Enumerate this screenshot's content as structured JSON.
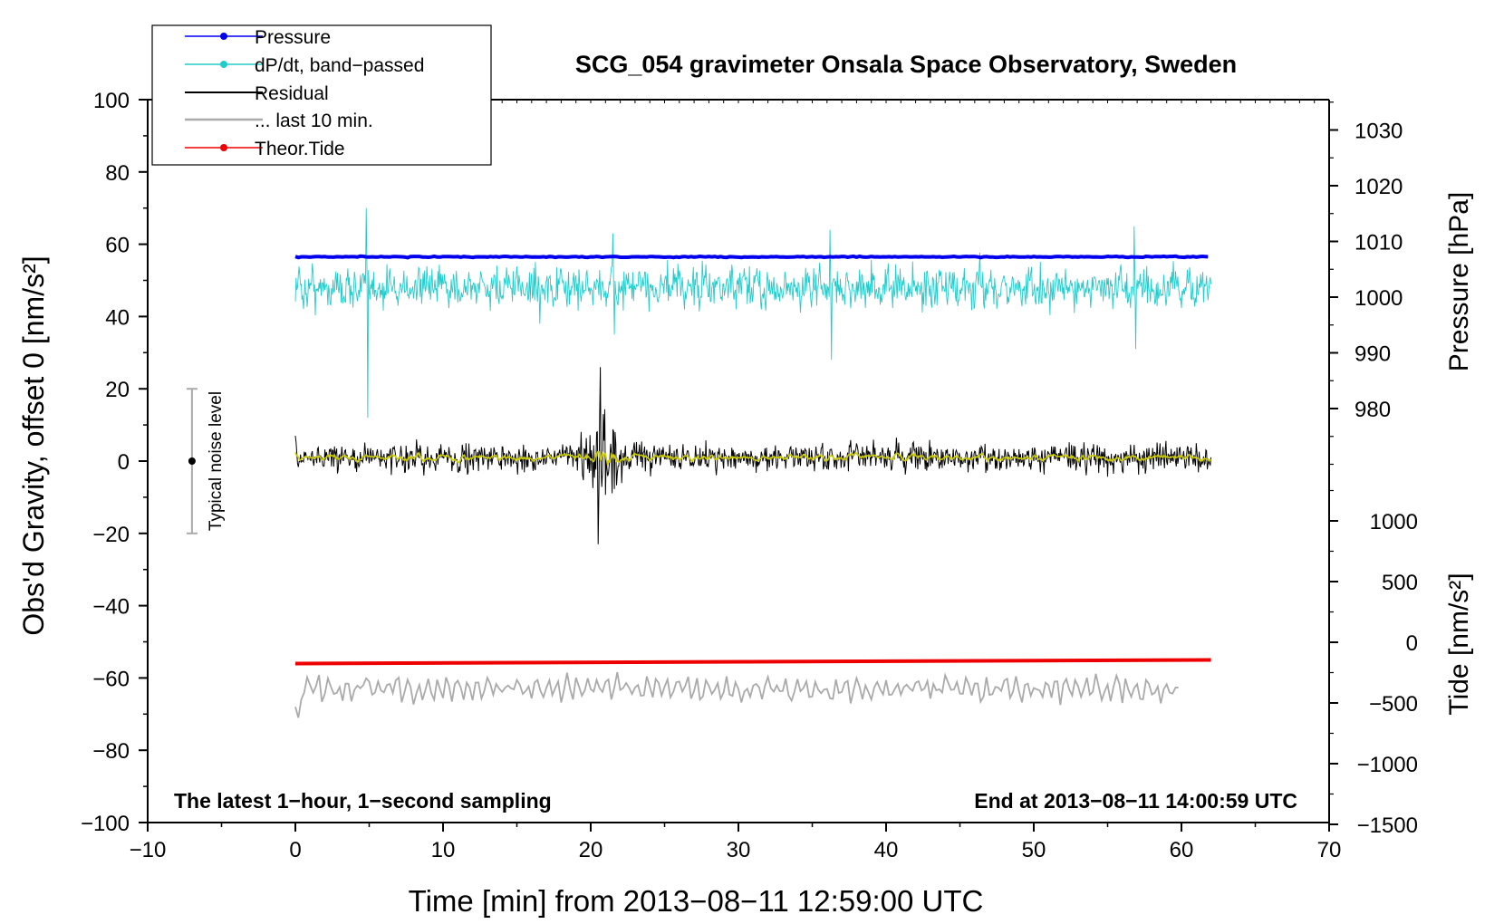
{
  "chart_data": {
    "type": "line",
    "title": "SCG_054 gravimeter Onsala Space Observatory, Sweden",
    "xlabel": "Time [min] from 2013−08−11 12:59:00 UTC",
    "ylabel_left": "Obs'd Gravity, offset 0 [nm/s²]",
    "ylabel_right_top": "Pressure [hPa]",
    "ylabel_right_bottom": "Tide [nm/s²]",
    "xlim": [
      -10,
      70
    ],
    "ylim": [
      -100,
      100
    ],
    "x_ticks": [
      -10,
      0,
      10,
      20,
      30,
      40,
      50,
      60,
      70
    ],
    "x_tick_labels": [
      "−10",
      "0",
      "10",
      "20",
      "30",
      "40",
      "50",
      "60",
      "70"
    ],
    "y_ticks": [
      -100,
      -80,
      -60,
      -40,
      -20,
      0,
      20,
      40,
      60,
      80,
      100
    ],
    "y_tick_labels": [
      "−100",
      "−80",
      "−60",
      "−40",
      "−20",
      "0",
      "20",
      "40",
      "60",
      "80",
      "100"
    ],
    "pressure_ticks": [
      980,
      990,
      1000,
      1010,
      1020,
      1030
    ],
    "tide_ticks": [
      -1500,
      -1000,
      -500,
      0,
      500,
      1000
    ],
    "tide_tick_labels": [
      "−1500",
      "−1000",
      "−500",
      "0",
      "500",
      "1000"
    ],
    "legend_position": "top-left",
    "legend": [
      {
        "label": "Pressure",
        "color": "#0000ee",
        "marker": true
      },
      {
        "label": "dP/dt, band−passed",
        "color": "#22cccc",
        "marker": true
      },
      {
        "label": "Residual",
        "color": "#000000",
        "marker": false
      },
      {
        "label": "... last 10 min.",
        "color": "#aaaaaa",
        "marker": false
      },
      {
        "label": "Theor.Tide",
        "color": "#ee0000",
        "marker": true
      }
    ],
    "annotations": {
      "left_bottom": "The latest 1−hour, 1−second sampling",
      "right_bottom": "End at 2013−08−11 14:00:59 UTC",
      "noise_label": "Typical noise level"
    },
    "noise_bar": {
      "x": -7,
      "y": 0,
      "half_range": 20
    },
    "series": [
      {
        "name": "Pressure",
        "color": "#0000ee",
        "x_range": [
          0,
          62
        ],
        "level_y": 56.5
      },
      {
        "name": "dP/dt, band−passed",
        "color": "#22cccc",
        "x_range": [
          0,
          62
        ],
        "center_y": 48,
        "spikes": [
          [
            4.8,
            70,
            12
          ],
          [
            21.5,
            63,
            35
          ],
          [
            36.2,
            64,
            28
          ],
          [
            56.8,
            65,
            31
          ]
        ]
      },
      {
        "name": "Residual",
        "color": "#000000",
        "x_range": [
          0,
          62
        ],
        "center_y": 1,
        "event_x": 20.5,
        "event_range": [
          -23,
          26
        ]
      },
      {
        "name": "Residual (smoothed)",
        "color": "#cccc00",
        "x_range": [
          0,
          62
        ],
        "center_y": 1
      },
      {
        "name": "... last 10 min.",
        "color": "#aaaaaa",
        "x_range": [
          0,
          60
        ],
        "center_y": -62,
        "range": [
          -71,
          -53
        ]
      },
      {
        "name": "Theor.Tide",
        "color": "#ee0000",
        "x_range": [
          0,
          62
        ],
        "start_y": -56,
        "end_y": -55
      }
    ],
    "colors": {
      "smoothed": "#cccc00"
    }
  }
}
